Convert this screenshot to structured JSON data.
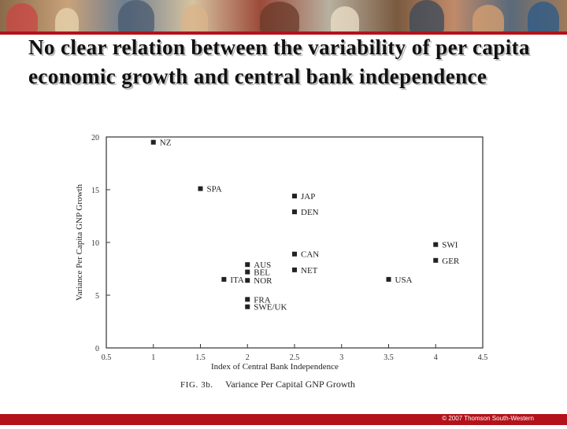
{
  "slide": {
    "title": "No clear relation between the variability of per capita economic growth and central bank independence",
    "footer": "© 2007 Thomson South-Western",
    "accent_color": "#b3121a"
  },
  "chart_data": {
    "type": "scatter",
    "title": "",
    "caption_fig": "FIG. 3b.",
    "caption_text": "Variance Per Capital GNP Growth",
    "xlabel": "Index of Central Bank Independence",
    "ylabel": "Variance Per Capita GNP Growth",
    "xlim": [
      0.5,
      4.5
    ],
    "ylim": [
      0,
      20
    ],
    "x_ticks": [
      "0.5",
      "1",
      "1.5",
      "2",
      "2.5",
      "3",
      "3.5",
      "4",
      "4.5"
    ],
    "y_ticks": [
      "0",
      "5",
      "10",
      "15",
      "20"
    ],
    "grid": false,
    "points": [
      {
        "label": "NZ",
        "x": 1.0,
        "y": 19.5
      },
      {
        "label": "SPA",
        "x": 1.5,
        "y": 15.1
      },
      {
        "label": "JAP",
        "x": 2.5,
        "y": 14.4
      },
      {
        "label": "DEN",
        "x": 2.5,
        "y": 12.9
      },
      {
        "label": "SWI",
        "x": 4.0,
        "y": 9.8
      },
      {
        "label": "GER",
        "x": 4.0,
        "y": 8.3
      },
      {
        "label": "CAN",
        "x": 2.5,
        "y": 8.9
      },
      {
        "label": "NET",
        "x": 2.5,
        "y": 7.4
      },
      {
        "label": "AUS",
        "x": 2.0,
        "y": 7.9
      },
      {
        "label": "BEL",
        "x": 2.0,
        "y": 7.2
      },
      {
        "label": "NOR",
        "x": 2.0,
        "y": 6.4
      },
      {
        "label": "ITA",
        "x": 1.75,
        "y": 6.5
      },
      {
        "label": "USA",
        "x": 3.5,
        "y": 6.5
      },
      {
        "label": "FRA",
        "x": 2.0,
        "y": 4.6
      },
      {
        "label": "SWE/UK",
        "x": 2.0,
        "y": 3.9
      }
    ]
  }
}
